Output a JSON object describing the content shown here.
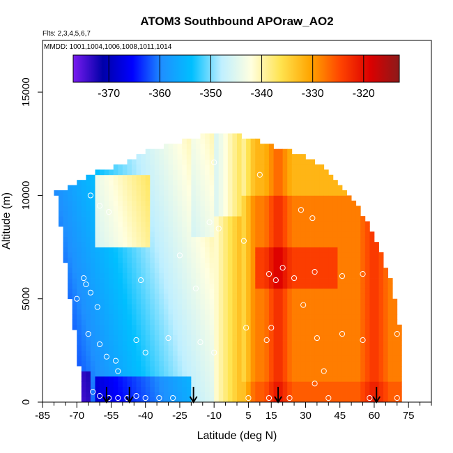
{
  "chart_data": {
    "type": "heatmap",
    "title": "ATOM3 Southbound APOraw_AO2",
    "flights_label": "Flts: 2,3,4,5,6,7",
    "mmdd_label": "MMDD: 1001,1004,1006,1008,1011,1014",
    "xlabel": "Latitude (deg N)",
    "ylabel": "Altitude (m)",
    "xlim": [
      -85,
      85
    ],
    "ylim": [
      0,
      17500
    ],
    "x_tick_labels": [
      "-85",
      "-70",
      "-55",
      "-40",
      "-25",
      "-10",
      "5",
      "15",
      "30",
      "45",
      "60",
      "75"
    ],
    "x_tick_values": [
      -85,
      -70,
      -55,
      -40,
      -25,
      -10,
      5,
      15,
      30,
      45,
      60,
      75
    ],
    "y_tick_labels": [
      "0",
      "5000",
      "10000",
      "15000"
    ],
    "y_tick_values": [
      0,
      5000,
      10000,
      15000
    ],
    "colorbar": {
      "range": [
        -377,
        -313
      ],
      "tick_labels": [
        "-370",
        "-360",
        "-350",
        "-340",
        "-330",
        "-320"
      ],
      "tick_values": [
        -370,
        -360,
        -350,
        -340,
        -330,
        -320
      ],
      "colors": [
        "#7a1cf0",
        "#0000a8",
        "#0000ff",
        "#1e90ff",
        "#00bfff",
        "#bfefff",
        "#ffffe0",
        "#ffe34f",
        "#ffa500",
        "#ff4500",
        "#dd0000",
        "#8b1a1a"
      ]
    },
    "profile_marker_latitudes": [
      -57,
      -47,
      -19,
      18,
      61
    ],
    "sample_points": [
      {
        "lat": -64,
        "alt": 10000
      },
      {
        "lat": -60,
        "alt": 9500
      },
      {
        "lat": -56,
        "alt": 9200
      },
      {
        "lat": -67,
        "alt": 6000
      },
      {
        "lat": -66,
        "alt": 5700
      },
      {
        "lat": -64,
        "alt": 5300
      },
      {
        "lat": -61,
        "alt": 4600
      },
      {
        "lat": -70,
        "alt": 5000
      },
      {
        "lat": -65,
        "alt": 3300
      },
      {
        "lat": -60,
        "alt": 2800
      },
      {
        "lat": -57,
        "alt": 2200
      },
      {
        "lat": -53,
        "alt": 2000
      },
      {
        "lat": -52,
        "alt": 1500
      },
      {
        "lat": -63,
        "alt": 500
      },
      {
        "lat": -60,
        "alt": 300
      },
      {
        "lat": -56,
        "alt": 200
      },
      {
        "lat": -52,
        "alt": 200
      },
      {
        "lat": -48,
        "alt": 200
      },
      {
        "lat": -44,
        "alt": 300
      },
      {
        "lat": -40,
        "alt": 200
      },
      {
        "lat": -34,
        "alt": 200
      },
      {
        "lat": -28,
        "alt": 200
      },
      {
        "lat": -44,
        "alt": 3000
      },
      {
        "lat": -42,
        "alt": 5900
      },
      {
        "lat": -40,
        "alt": 2400
      },
      {
        "lat": -30,
        "alt": 3100
      },
      {
        "lat": -25,
        "alt": 7100
      },
      {
        "lat": -18,
        "alt": 5500
      },
      {
        "lat": -16,
        "alt": 2900
      },
      {
        "lat": -10,
        "alt": 2400
      },
      {
        "lat": -12,
        "alt": 8700
      },
      {
        "lat": -10,
        "alt": 11600
      },
      {
        "lat": -8,
        "alt": 8400
      },
      {
        "lat": 3,
        "alt": 7800
      },
      {
        "lat": 4,
        "alt": 3600
      },
      {
        "lat": 5,
        "alt": 200
      },
      {
        "lat": 10,
        "alt": 11000
      },
      {
        "lat": 14,
        "alt": 6200
      },
      {
        "lat": 17,
        "alt": 5900
      },
      {
        "lat": 13,
        "alt": 3000
      },
      {
        "lat": 15,
        "alt": 3600
      },
      {
        "lat": 20,
        "alt": 6500
      },
      {
        "lat": 25,
        "alt": 6000
      },
      {
        "lat": 28,
        "alt": 9300
      },
      {
        "lat": 33,
        "alt": 8900
      },
      {
        "lat": 34,
        "alt": 6300
      },
      {
        "lat": 29,
        "alt": 4700
      },
      {
        "lat": 35,
        "alt": 3100
      },
      {
        "lat": 38,
        "alt": 1500
      },
      {
        "lat": 34,
        "alt": 900
      },
      {
        "lat": 40,
        "alt": 200
      },
      {
        "lat": 46,
        "alt": 6100
      },
      {
        "lat": 55,
        "alt": 6200
      },
      {
        "lat": 46,
        "alt": 3300
      },
      {
        "lat": 55,
        "alt": 3000
      },
      {
        "lat": 70,
        "alt": 3300
      },
      {
        "lat": 58,
        "alt": 200
      },
      {
        "lat": 70,
        "alt": 200
      },
      {
        "lat": 23,
        "alt": 200
      },
      {
        "lat": 14,
        "alt": 200
      }
    ]
  }
}
